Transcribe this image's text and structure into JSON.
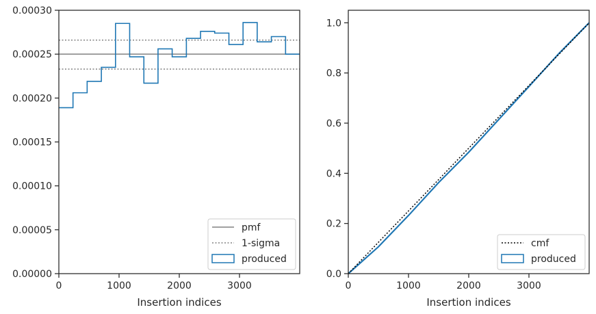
{
  "chart_data": [
    {
      "type": "histogram",
      "xlabel": "Insertion indices",
      "ylabel": "",
      "xlim": [
        0,
        4000
      ],
      "ylim": [
        0,
        0.0003
      ],
      "xticks": [
        0,
        1000,
        2000,
        3000
      ],
      "xtick_labels": [
        "0",
        "1000",
        "2000",
        "3000"
      ],
      "yticks": [
        0,
        5e-05,
        0.0001,
        0.00015,
        0.0002,
        0.00025,
        0.0003
      ],
      "ytick_labels": [
        "0.00000",
        "0.00005",
        "0.00010",
        "0.00015",
        "0.00020",
        "0.00025",
        "0.00030"
      ],
      "legend_position": "lower-right",
      "reference_lines": [
        {
          "name": "pmf",
          "style": "solid",
          "color": "#808080",
          "y": 0.00025
        },
        {
          "name": "1-sigma",
          "style": "dotted",
          "color": "#808080",
          "y": [
            0.000233,
            0.000266
          ]
        }
      ],
      "series": [
        {
          "name": "produced",
          "style": "step",
          "color": "#1f77b4",
          "bin_edges": [
            0,
            235,
            470,
            706,
            941,
            1176,
            1412,
            1647,
            1882,
            2118,
            2353,
            2588,
            2824,
            3059,
            3294,
            3529,
            3765,
            4000
          ],
          "values": [
            0.000189,
            0.000206,
            0.000219,
            0.000235,
            0.000285,
            0.000247,
            0.000217,
            0.000256,
            0.000247,
            0.000268,
            0.000276,
            0.000274,
            0.000261,
            0.000286,
            0.000264,
            0.00027,
            0.00025
          ]
        }
      ]
    },
    {
      "type": "line",
      "xlabel": "Insertion indices",
      "ylabel": "",
      "xlim": [
        0,
        4000
      ],
      "ylim": [
        0,
        1.05
      ],
      "xticks": [
        0,
        1000,
        2000,
        3000
      ],
      "xtick_labels": [
        "0",
        "1000",
        "2000",
        "3000"
      ],
      "yticks": [
        0,
        0.2,
        0.4,
        0.6,
        0.8,
        1.0
      ],
      "ytick_labels": [
        "0.0",
        "0.2",
        "0.4",
        "0.6",
        "0.8",
        "1.0"
      ],
      "legend_position": "lower-right",
      "series": [
        {
          "name": "cmf",
          "style": "dotted",
          "color": "#000000",
          "x": [
            0,
            4000
          ],
          "y": [
            0,
            1.0
          ]
        },
        {
          "name": "produced",
          "style": "step",
          "color": "#1f77b4",
          "x": [
            0,
            500,
            1000,
            1500,
            2000,
            2500,
            3000,
            3500,
            4000
          ],
          "y": [
            0,
            0.107,
            0.232,
            0.363,
            0.484,
            0.615,
            0.746,
            0.878,
            1.0
          ]
        }
      ]
    }
  ]
}
